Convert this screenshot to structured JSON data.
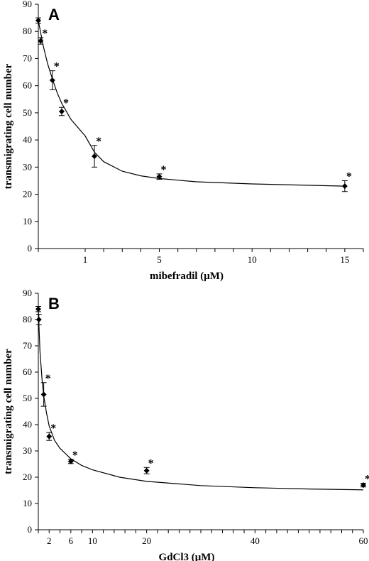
{
  "chart_data": [
    {
      "panel_label": "A",
      "type": "scatter",
      "xlabel": "mibefradil (μM)",
      "ylabel": "transmigrating cell number",
      "xlim": [
        0,
        16
      ],
      "ylim": [
        0,
        90
      ],
      "xticks": [
        0,
        1,
        5,
        10,
        15
      ],
      "xtick_labels": [
        "",
        "1",
        "5",
        "10",
        "15"
      ],
      "x_minor_ticks": [
        0,
        1,
        2,
        3,
        4,
        5,
        6,
        7,
        8,
        9,
        10,
        11,
        12,
        13,
        14,
        15,
        16
      ],
      "yticks": [
        0,
        10,
        20,
        30,
        40,
        50,
        60,
        70,
        80,
        90
      ],
      "grid": false,
      "points": [
        {
          "x": 0,
          "y": 84,
          "err": 1,
          "sig": false
        },
        {
          "x": 0.05,
          "y": 76.5,
          "err": 1.2,
          "sig": true
        },
        {
          "x": 0.3,
          "y": 62,
          "err": 3.5,
          "sig": true
        },
        {
          "x": 0.5,
          "y": 50.5,
          "err": 1.5,
          "sig": true
        },
        {
          "x": 1.5,
          "y": 34,
          "err": 4,
          "sig": true
        },
        {
          "x": 5,
          "y": 26.5,
          "err": 1,
          "sig": true
        },
        {
          "x": 15,
          "y": 23,
          "err": 2,
          "sig": true
        }
      ],
      "fit_curve": [
        [
          0,
          84
        ],
        [
          0.1,
          75
        ],
        [
          0.2,
          68
        ],
        [
          0.3,
          62.5
        ],
        [
          0.4,
          57.5
        ],
        [
          0.5,
          53.5
        ],
        [
          0.7,
          47.5
        ],
        [
          1,
          41.5
        ],
        [
          1.5,
          35.5
        ],
        [
          2,
          32
        ],
        [
          3,
          28.5
        ],
        [
          4,
          26.8
        ],
        [
          5,
          25.8
        ],
        [
          7,
          24.6
        ],
        [
          10,
          23.8
        ],
        [
          13,
          23.3
        ],
        [
          15,
          23
        ]
      ]
    },
    {
      "panel_label": "B",
      "type": "scatter",
      "xlabel": "GdCl3 (μM)",
      "ylabel": "transmigrating cell number",
      "xlim": [
        0,
        60
      ],
      "ylim": [
        0,
        90
      ],
      "xticks": [
        2,
        6,
        10,
        20,
        40,
        60
      ],
      "xtick_labels": [
        "2",
        "6",
        "10",
        "20",
        "40",
        "60"
      ],
      "x_minor_ticks": [
        0,
        2,
        4,
        6,
        8,
        10,
        12,
        14,
        16,
        18,
        20,
        22,
        24,
        26,
        28,
        30,
        32,
        34,
        36,
        38,
        40,
        42,
        44,
        46,
        48,
        50,
        52,
        54,
        56,
        58,
        60
      ],
      "yticks": [
        0,
        10,
        20,
        30,
        40,
        50,
        60,
        70,
        80,
        90
      ],
      "grid": false,
      "points": [
        {
          "x": 0,
          "y": 84,
          "err": 1,
          "sig": false
        },
        {
          "x": 0.1,
          "y": 80,
          "err": 2,
          "sig": false
        },
        {
          "x": 1,
          "y": 51.5,
          "err": 4.5,
          "sig": true
        },
        {
          "x": 2,
          "y": 35.5,
          "err": 1.5,
          "sig": true
        },
        {
          "x": 6,
          "y": 26,
          "err": 0.8,
          "sig": true
        },
        {
          "x": 20,
          "y": 22.5,
          "err": 1.2,
          "sig": true
        },
        {
          "x": 60,
          "y": 17,
          "err": 0.7,
          "sig": true
        }
      ],
      "fit_curve": [
        [
          0,
          84
        ],
        [
          0.3,
          68
        ],
        [
          0.7,
          57
        ],
        [
          1,
          51
        ],
        [
          1.5,
          44.5
        ],
        [
          2,
          39.5
        ],
        [
          3,
          34
        ],
        [
          4,
          31
        ],
        [
          6,
          27
        ],
        [
          8,
          24.5
        ],
        [
          10,
          22.8
        ],
        [
          15,
          20
        ],
        [
          20,
          18.4
        ],
        [
          30,
          16.8
        ],
        [
          40,
          16
        ],
        [
          50,
          15.5
        ],
        [
          60,
          15.2
        ]
      ]
    }
  ]
}
